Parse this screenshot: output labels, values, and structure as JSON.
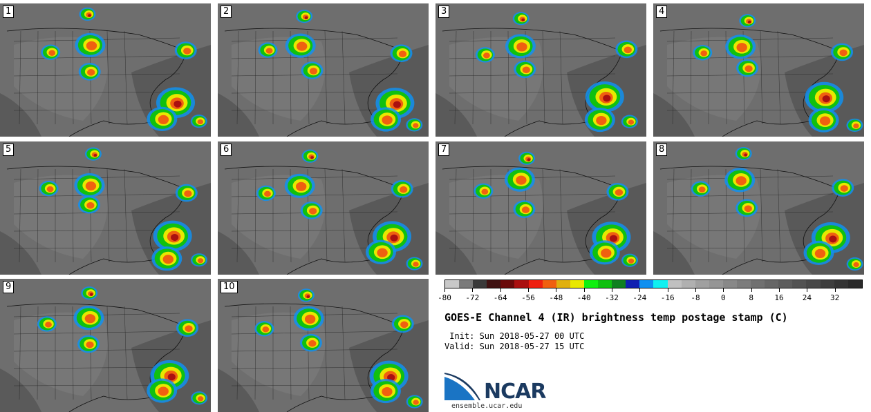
{
  "panels": [
    {
      "label": "1"
    },
    {
      "label": "2"
    },
    {
      "label": "3"
    },
    {
      "label": "4"
    },
    {
      "label": "5"
    },
    {
      "label": "6"
    },
    {
      "label": "7"
    },
    {
      "label": "8"
    },
    {
      "label": "9"
    },
    {
      "label": "10"
    }
  ],
  "colorbar": {
    "colors": [
      "#c8c8c8",
      "#7a7a7a",
      "#3a3a3a",
      "#3f1212",
      "#6a0a0a",
      "#aa1010",
      "#ee2010",
      "#f06010",
      "#e0b010",
      "#e8e800",
      "#10f010",
      "#10c010",
      "#108020",
      "#1020b0",
      "#1090f0",
      "#10f0f0",
      "#c0c0c0",
      "#b0b0b0",
      "#a0a0a0",
      "#959595",
      "#888888",
      "#7c7c7c",
      "#707070",
      "#666666",
      "#5c5c5c",
      "#525252",
      "#484848",
      "#3e3e3e",
      "#343434",
      "#2a2a2a"
    ],
    "ticks": [
      "-80",
      "-72",
      "-64",
      "-56",
      "-48",
      "-40",
      "-32",
      "-24",
      "-16",
      "-8",
      "0",
      "8",
      "16",
      "24",
      "32"
    ]
  },
  "title": "GOES-E Channel 4 (IR) brightness temp postage stamp (C)",
  "init": " Init: Sun 2018-05-27 00 UTC",
  "valid": "Valid: Sun 2018-05-27 15 UTC",
  "logo": {
    "name": "NCAR",
    "site": "ensemble.ucar.edu"
  }
}
